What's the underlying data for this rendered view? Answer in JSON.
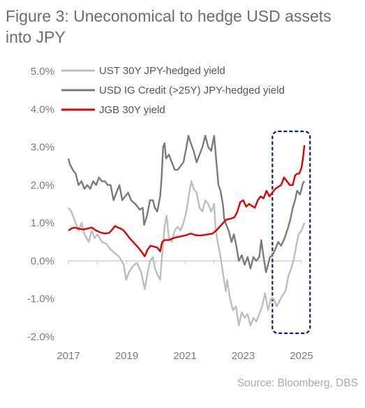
{
  "title": "Figure 3:  Uneconomical to hedge USD assets into JPY",
  "source": "Source: Bloomberg, DBS",
  "colors": {
    "ust": "#bdbdbd",
    "ig": "#7a7a7a",
    "jgb": "#e00000",
    "highlight": "#0a1f6e",
    "axis": "#c8c8c8"
  },
  "chart_data": {
    "type": "line",
    "xlim": [
      2017,
      2025
    ],
    "ylim": [
      -2.0,
      5.0
    ],
    "x_ticks": [
      "2017",
      "2019",
      "2021",
      "2023",
      "2025"
    ],
    "y_ticks": [
      "5.0%",
      "4.0%",
      "3.0%",
      "2.0%",
      "1.0%",
      "0.0%",
      "-1.0%",
      "-2.0%"
    ],
    "legend_position": "top-left",
    "highlight_box_x": [
      2024.05,
      2025.15
    ],
    "series": [
      {
        "name": "UST 30Y JPY-hedged yield",
        "color_key": "ust",
        "points": [
          [
            2017.0,
            1.4
          ],
          [
            2017.1,
            1.3
          ],
          [
            2017.2,
            1.1
          ],
          [
            2017.35,
            0.8
          ],
          [
            2017.45,
            1.0
          ],
          [
            2017.55,
            0.7
          ],
          [
            2017.7,
            0.5
          ],
          [
            2017.8,
            0.8
          ],
          [
            2017.9,
            0.6
          ],
          [
            2018.0,
            0.7
          ],
          [
            2018.15,
            0.5
          ],
          [
            2018.3,
            0.45
          ],
          [
            2018.45,
            0.3
          ],
          [
            2018.6,
            0.2
          ],
          [
            2018.75,
            0.1
          ],
          [
            2018.9,
            -0.1
          ],
          [
            2018.98,
            -0.5
          ],
          [
            2019.08,
            -0.3
          ],
          [
            2019.2,
            -0.15
          ],
          [
            2019.35,
            -0.05
          ],
          [
            2019.5,
            -0.3
          ],
          [
            2019.62,
            -0.75
          ],
          [
            2019.7,
            -0.4
          ],
          [
            2019.8,
            0.0
          ],
          [
            2019.9,
            0.1
          ],
          [
            2019.97,
            -0.2
          ],
          [
            2020.05,
            -0.35
          ],
          [
            2020.15,
            -0.5
          ],
          [
            2020.2,
            0.0
          ],
          [
            2020.3,
            0.9
          ],
          [
            2020.37,
            1.2
          ],
          [
            2020.45,
            0.6
          ],
          [
            2020.55,
            0.5
          ],
          [
            2020.65,
            0.8
          ],
          [
            2020.75,
            0.9
          ],
          [
            2020.85,
            0.8
          ],
          [
            2020.95,
            1.0
          ],
          [
            2021.05,
            1.3
          ],
          [
            2021.15,
            1.8
          ],
          [
            2021.22,
            2.1
          ],
          [
            2021.3,
            1.9
          ],
          [
            2021.4,
            1.8
          ],
          [
            2021.5,
            1.4
          ],
          [
            2021.6,
            1.3
          ],
          [
            2021.7,
            1.6
          ],
          [
            2021.8,
            1.5
          ],
          [
            2021.9,
            1.3
          ],
          [
            2022.0,
            1.5
          ],
          [
            2022.05,
            0.9
          ],
          [
            2022.12,
            0.5
          ],
          [
            2022.2,
            0.2
          ],
          [
            2022.3,
            -0.3
          ],
          [
            2022.4,
            -0.8
          ],
          [
            2022.45,
            -0.5
          ],
          [
            2022.55,
            -1.0
          ],
          [
            2022.65,
            -1.3
          ],
          [
            2022.75,
            -1.2
          ],
          [
            2022.85,
            -1.7
          ],
          [
            2022.95,
            -1.35
          ],
          [
            2023.05,
            -1.5
          ],
          [
            2023.15,
            -1.4
          ],
          [
            2023.25,
            -1.7
          ],
          [
            2023.35,
            -1.5
          ],
          [
            2023.45,
            -1.6
          ],
          [
            2023.55,
            -1.4
          ],
          [
            2023.65,
            -1.2
          ],
          [
            2023.75,
            -0.85
          ],
          [
            2023.85,
            -1.3
          ],
          [
            2023.95,
            -1.0
          ],
          [
            2024.05,
            -1.0
          ],
          [
            2024.15,
            -1.2
          ],
          [
            2024.25,
            -1.05
          ],
          [
            2024.35,
            -0.9
          ],
          [
            2024.45,
            -0.8
          ],
          [
            2024.55,
            -0.4
          ],
          [
            2024.65,
            -0.2
          ],
          [
            2024.75,
            0.1
          ],
          [
            2024.82,
            0.4
          ],
          [
            2024.9,
            0.7
          ],
          [
            2025.0,
            0.8
          ],
          [
            2025.05,
            0.9
          ],
          [
            2025.1,
            1.0
          ]
        ]
      },
      {
        "name": "USD IG Credit (>25Y) JPY-hedged yield",
        "color_key": "ig",
        "points": [
          [
            2017.0,
            2.7
          ],
          [
            2017.05,
            2.55
          ],
          [
            2017.15,
            2.4
          ],
          [
            2017.25,
            2.3
          ],
          [
            2017.35,
            2.0
          ],
          [
            2017.45,
            2.1
          ],
          [
            2017.55,
            1.9
          ],
          [
            2017.65,
            2.0
          ],
          [
            2017.75,
            1.9
          ],
          [
            2017.85,
            2.1
          ],
          [
            2017.95,
            2.0
          ],
          [
            2018.05,
            2.2
          ],
          [
            2018.15,
            2.1
          ],
          [
            2018.25,
            2.1
          ],
          [
            2018.35,
            2.0
          ],
          [
            2018.45,
            2.0
          ],
          [
            2018.55,
            1.6
          ],
          [
            2018.65,
            1.8
          ],
          [
            2018.75,
            2.0
          ],
          [
            2018.85,
            1.6
          ],
          [
            2018.95,
            1.7
          ],
          [
            2019.05,
            1.8
          ],
          [
            2019.15,
            1.6
          ],
          [
            2019.3,
            1.5
          ],
          [
            2019.45,
            1.35
          ],
          [
            2019.55,
            1.4
          ],
          [
            2019.6,
            0.95
          ],
          [
            2019.7,
            1.2
          ],
          [
            2019.8,
            1.6
          ],
          [
            2019.9,
            1.6
          ],
          [
            2019.97,
            1.4
          ],
          [
            2020.05,
            1.3
          ],
          [
            2020.15,
            1.7
          ],
          [
            2020.2,
            2.2
          ],
          [
            2020.25,
            3.0
          ],
          [
            2020.3,
            3.1
          ],
          [
            2020.35,
            2.7
          ],
          [
            2020.45,
            2.8
          ],
          [
            2020.55,
            2.6
          ],
          [
            2020.65,
            2.4
          ],
          [
            2020.75,
            2.4
          ],
          [
            2020.85,
            2.5
          ],
          [
            2020.95,
            2.6
          ],
          [
            2021.05,
            3.0
          ],
          [
            2021.12,
            3.3
          ],
          [
            2021.2,
            3.1
          ],
          [
            2021.3,
            2.9
          ],
          [
            2021.4,
            2.6
          ],
          [
            2021.5,
            2.8
          ],
          [
            2021.6,
            3.0
          ],
          [
            2021.7,
            3.3
          ],
          [
            2021.8,
            3.0
          ],
          [
            2021.9,
            2.9
          ],
          [
            2022.0,
            3.3
          ],
          [
            2022.08,
            2.6
          ],
          [
            2022.15,
            2.0
          ],
          [
            2022.22,
            1.85
          ],
          [
            2022.3,
            1.5
          ],
          [
            2022.35,
            1.1
          ],
          [
            2022.42,
            0.95
          ],
          [
            2022.5,
            0.8
          ],
          [
            2022.6,
            0.5
          ],
          [
            2022.68,
            0.7
          ],
          [
            2022.75,
            0.45
          ],
          [
            2022.85,
            0.0
          ],
          [
            2022.95,
            0.15
          ],
          [
            2023.05,
            -0.1
          ],
          [
            2023.15,
            0.1
          ],
          [
            2023.25,
            -0.2
          ],
          [
            2023.35,
            0.1
          ],
          [
            2023.45,
            0.0
          ],
          [
            2023.55,
            0.1
          ],
          [
            2023.62,
            0.55
          ],
          [
            2023.68,
            0.2
          ],
          [
            2023.78,
            -0.3
          ],
          [
            2023.85,
            -0.1
          ],
          [
            2023.92,
            0.1
          ],
          [
            2024.0,
            0.15
          ],
          [
            2024.1,
            0.3
          ],
          [
            2024.2,
            0.5
          ],
          [
            2024.3,
            0.4
          ],
          [
            2024.42,
            0.6
          ],
          [
            2024.55,
            0.9
          ],
          [
            2024.62,
            1.1
          ],
          [
            2024.7,
            1.4
          ],
          [
            2024.78,
            1.6
          ],
          [
            2024.85,
            1.85
          ],
          [
            2024.95,
            1.75
          ],
          [
            2025.0,
            1.9
          ],
          [
            2025.05,
            2.05
          ],
          [
            2025.1,
            2.1
          ]
        ]
      },
      {
        "name": "JGB 30Y yield",
        "color_key": "jgb",
        "points": [
          [
            2017.0,
            0.8
          ],
          [
            2017.1,
            0.85
          ],
          [
            2017.2,
            0.88
          ],
          [
            2017.35,
            0.85
          ],
          [
            2017.5,
            0.83
          ],
          [
            2017.65,
            0.85
          ],
          [
            2017.8,
            0.88
          ],
          [
            2017.95,
            0.8
          ],
          [
            2018.1,
            0.75
          ],
          [
            2018.25,
            0.72
          ],
          [
            2018.4,
            0.74
          ],
          [
            2018.5,
            0.82
          ],
          [
            2018.6,
            0.92
          ],
          [
            2018.7,
            0.88
          ],
          [
            2018.8,
            0.85
          ],
          [
            2018.9,
            0.8
          ],
          [
            2019.0,
            0.7
          ],
          [
            2019.1,
            0.6
          ],
          [
            2019.25,
            0.48
          ],
          [
            2019.4,
            0.35
          ],
          [
            2019.55,
            0.2
          ],
          [
            2019.62,
            0.12
          ],
          [
            2019.72,
            0.3
          ],
          [
            2019.82,
            0.4
          ],
          [
            2019.92,
            0.38
          ],
          [
            2020.05,
            0.35
          ],
          [
            2020.15,
            0.25
          ],
          [
            2020.22,
            0.5
          ],
          [
            2020.3,
            0.55
          ],
          [
            2020.45,
            0.55
          ],
          [
            2020.6,
            0.6
          ],
          [
            2020.75,
            0.63
          ],
          [
            2020.9,
            0.65
          ],
          [
            2021.05,
            0.68
          ],
          [
            2021.2,
            0.72
          ],
          [
            2021.35,
            0.68
          ],
          [
            2021.5,
            0.67
          ],
          [
            2021.65,
            0.68
          ],
          [
            2021.8,
            0.7
          ],
          [
            2021.95,
            0.72
          ],
          [
            2022.1,
            0.82
          ],
          [
            2022.25,
            0.95
          ],
          [
            2022.4,
            1.08
          ],
          [
            2022.5,
            1.1
          ],
          [
            2022.6,
            1.12
          ],
          [
            2022.7,
            1.15
          ],
          [
            2022.8,
            1.3
          ],
          [
            2022.9,
            1.55
          ],
          [
            2023.0,
            1.6
          ],
          [
            2023.1,
            1.43
          ],
          [
            2023.2,
            1.5
          ],
          [
            2023.3,
            1.45
          ],
          [
            2023.4,
            1.4
          ],
          [
            2023.5,
            1.6
          ],
          [
            2023.6,
            1.7
          ],
          [
            2023.7,
            1.65
          ],
          [
            2023.8,
            1.85
          ],
          [
            2023.9,
            1.7
          ],
          [
            2024.0,
            1.8
          ],
          [
            2024.1,
            1.9
          ],
          [
            2024.2,
            1.95
          ],
          [
            2024.3,
            2.0
          ],
          [
            2024.4,
            2.2
          ],
          [
            2024.5,
            2.1
          ],
          [
            2024.6,
            2.0
          ],
          [
            2024.7,
            2.0
          ],
          [
            2024.78,
            2.25
          ],
          [
            2024.85,
            2.3
          ],
          [
            2024.92,
            2.3
          ],
          [
            2025.0,
            2.45
          ],
          [
            2025.05,
            2.7
          ],
          [
            2025.1,
            3.05
          ]
        ]
      }
    ]
  }
}
